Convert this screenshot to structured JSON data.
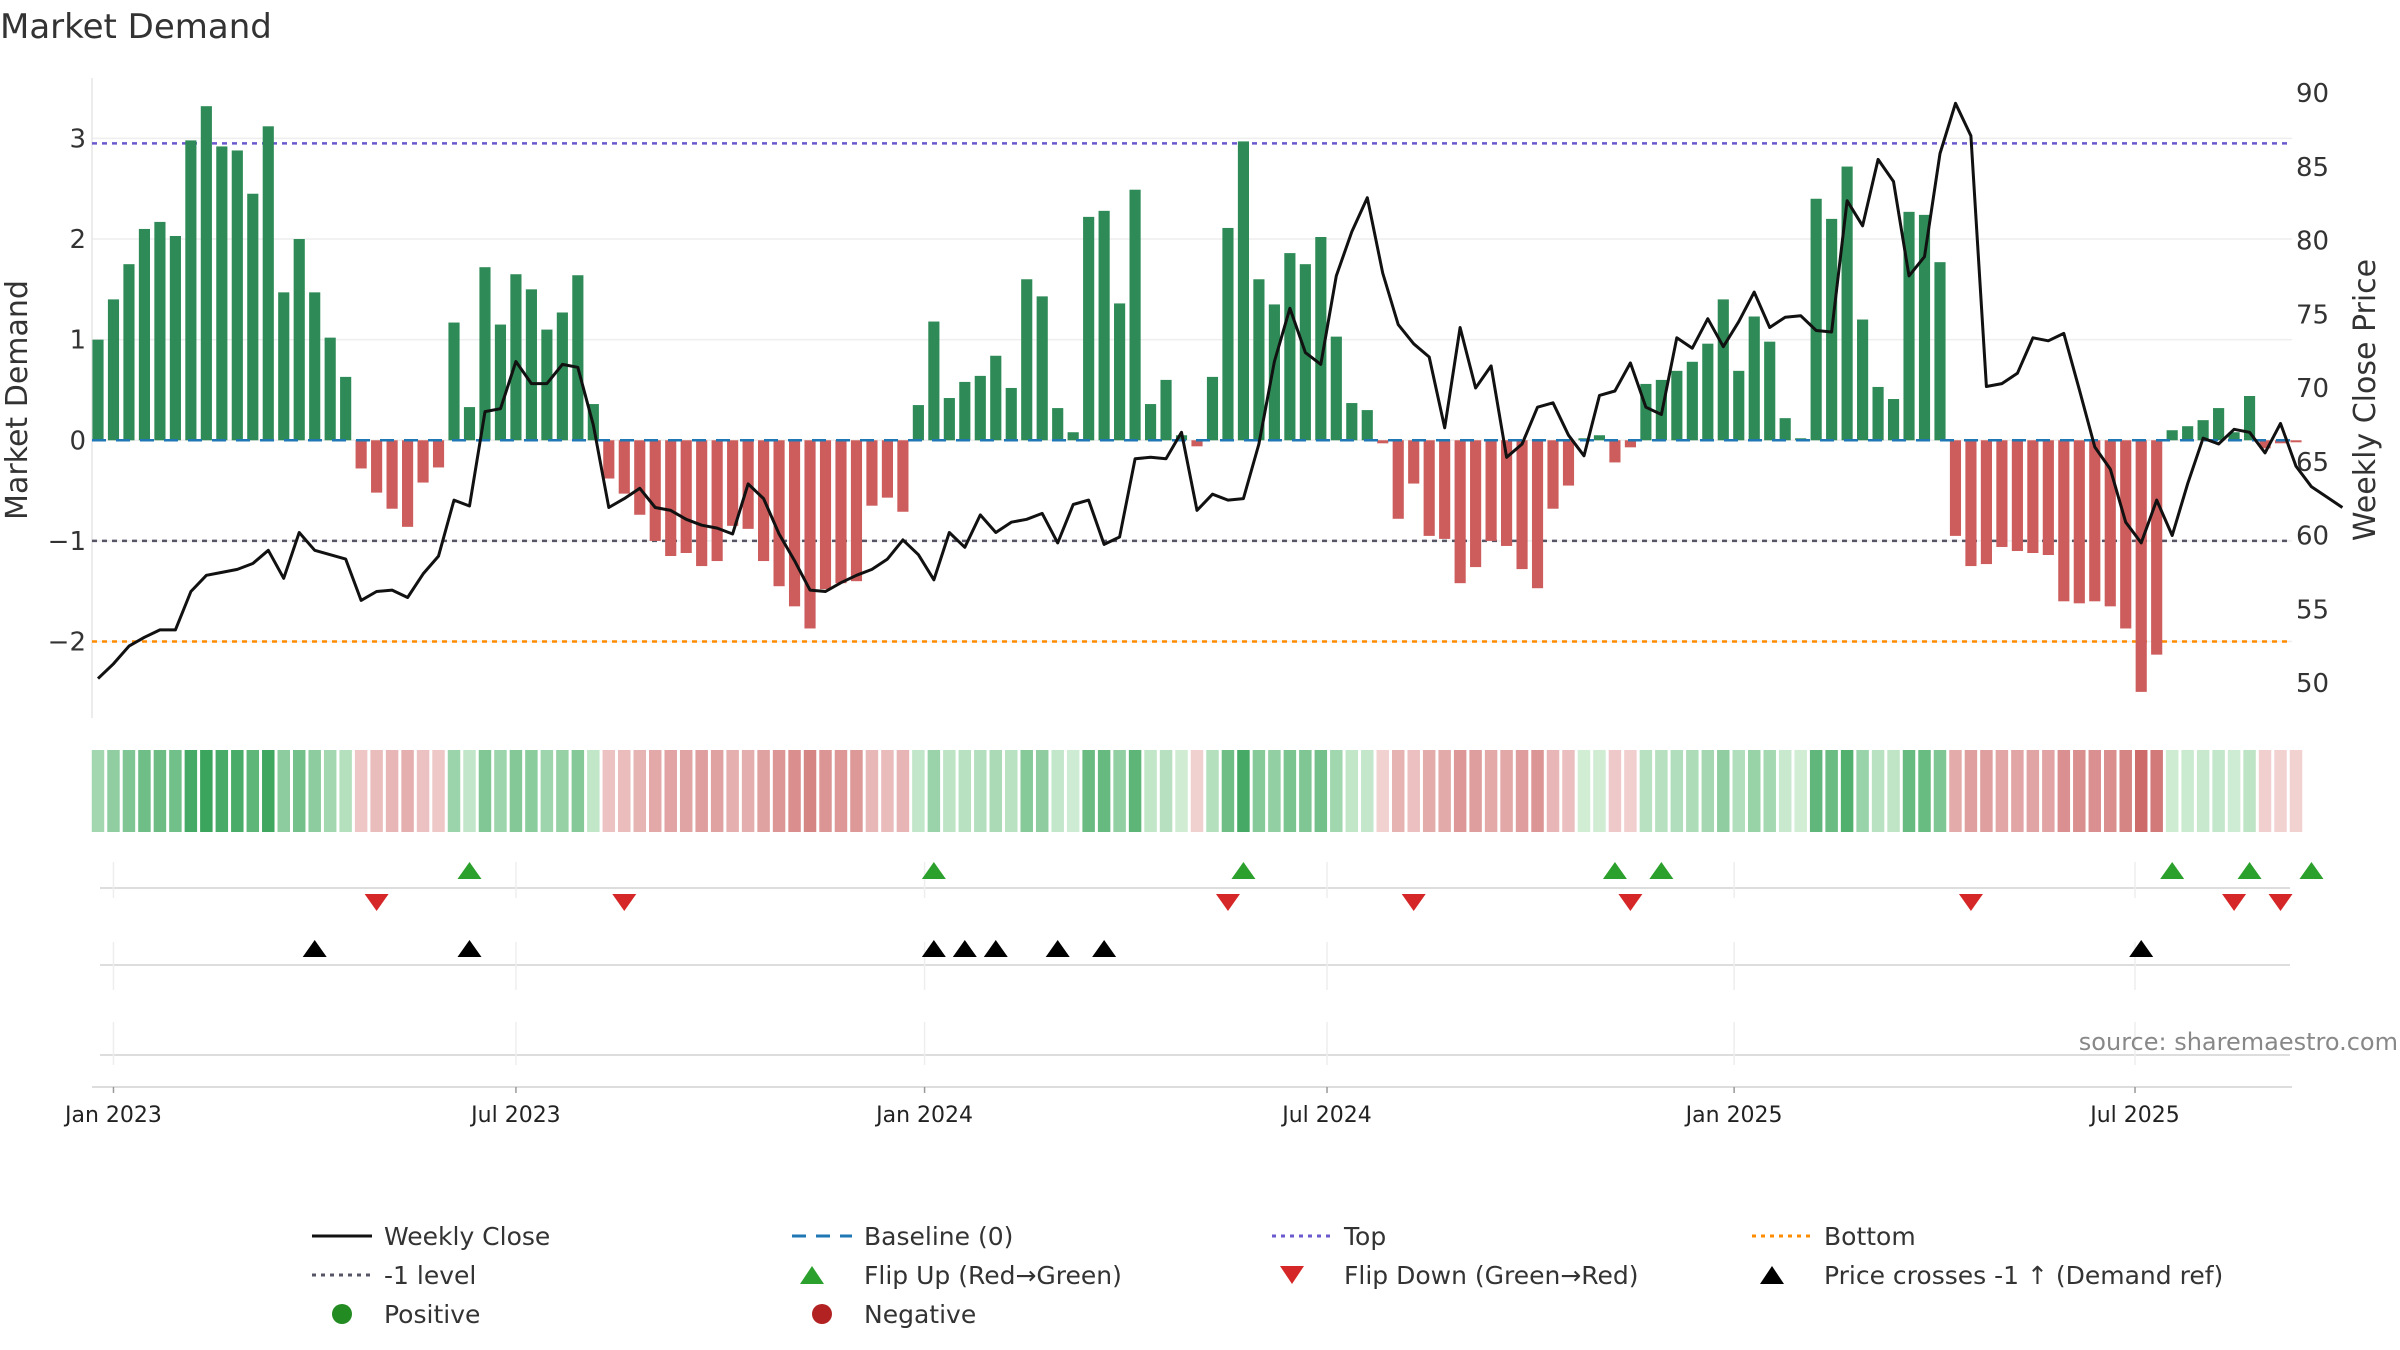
{
  "chart_data": {
    "type": "bar+line",
    "title": "Market Demand",
    "ylabel_left": "Market Demand",
    "ylabel_right": "Weekly Close Price",
    "ylim_left": [
      -2.7,
      3.6
    ],
    "ylim_right": [
      48.0,
      91.0
    ],
    "yticks_left": [
      3,
      2,
      1,
      0,
      -1,
      -2
    ],
    "ytick_labels_left": [
      "3",
      "2",
      "1",
      "0",
      "−1",
      "−2"
    ],
    "yticks_right": [
      90,
      85,
      80,
      75,
      70,
      65,
      60,
      55,
      50
    ],
    "ytick_labels_right": [
      "90",
      "85",
      "80",
      "75",
      "70",
      "65",
      "60",
      "55",
      "50"
    ],
    "x_start": "2022-12-26",
    "x_end": "2025-09-01",
    "xticks": [
      {
        "label": "Jan 2023",
        "week": 1
      },
      {
        "label": "Jul 2023",
        "week": 27
      },
      {
        "label": "Jan 2024",
        "week": 53.4
      },
      {
        "label": "Jul 2024",
        "week": 79.4
      },
      {
        "label": "Jan 2025",
        "week": 105.7
      },
      {
        "label": "Jul 2025",
        "week": 131.6
      }
    ],
    "reference_lines": {
      "top": 2.95,
      "minus_one_level": -1.0,
      "bottom": -2.0,
      "baseline": 0
    },
    "demand": [
      1.0,
      1.4,
      1.75,
      2.1,
      2.17,
      2.03,
      2.98,
      3.32,
      2.92,
      2.88,
      2.45,
      3.12,
      1.47,
      2.0,
      1.47,
      1.02,
      0.63,
      -0.28,
      -0.52,
      -0.68,
      -0.86,
      -0.42,
      -0.27,
      1.17,
      0.33,
      1.72,
      1.15,
      1.65,
      1.5,
      1.1,
      1.27,
      1.64,
      0.36,
      -0.38,
      -0.53,
      -0.74,
      -1.0,
      -1.15,
      -1.12,
      -1.25,
      -1.2,
      -0.85,
      -0.88,
      -1.2,
      -1.45,
      -1.65,
      -1.87,
      -1.48,
      -1.42,
      -1.4,
      -0.65,
      -0.57,
      -0.71,
      0.35,
      1.18,
      0.42,
      0.58,
      0.64,
      0.84,
      0.52,
      1.6,
      1.43,
      0.32,
      0.08,
      2.22,
      2.28,
      1.36,
      2.49,
      0.36,
      0.6,
      0.05,
      -0.06,
      0.63,
      2.11,
      2.97,
      1.6,
      1.35,
      1.86,
      1.75,
      2.02,
      1.03,
      0.37,
      0.3,
      -0.03,
      -0.78,
      -0.43,
      -0.95,
      -0.98,
      -1.42,
      -1.26,
      -1.0,
      -1.05,
      -1.28,
      -1.47,
      -0.68,
      -0.45,
      0.02,
      0.05,
      -0.22,
      -0.07,
      0.56,
      0.6,
      0.69,
      0.78,
      0.96,
      1.4,
      0.69,
      1.23,
      0.98,
      0.22,
      0.02,
      2.4,
      2.2,
      2.72,
      1.2,
      0.53,
      0.41,
      2.27,
      2.24,
      1.77,
      -0.95,
      -1.25,
      -1.23,
      -1.06,
      -1.1,
      -1.12,
      -1.14,
      -1.6,
      -1.62,
      -1.6,
      -1.65,
      -1.87,
      -2.5,
      -2.13,
      0.1,
      0.14,
      0.2,
      0.32,
      0.08,
      0.44,
      -0.08,
      -0.03,
      -0.02
    ],
    "price": [
      50.3,
      51.3,
      52.5,
      53.1,
      53.6,
      53.6,
      56.2,
      57.3,
      57.5,
      57.7,
      58.1,
      59.0,
      57.1,
      60.2,
      59.0,
      58.7,
      58.4,
      55.6,
      56.2,
      56.3,
      55.8,
      57.4,
      58.6,
      62.4,
      62.0,
      68.4,
      68.6,
      71.8,
      70.3,
      70.3,
      71.6,
      71.4,
      67.5,
      61.9,
      62.5,
      63.2,
      61.9,
      61.7,
      61.1,
      60.7,
      60.5,
      60.1,
      63.5,
      62.5,
      60.1,
      58.3,
      56.3,
      56.2,
      56.8,
      57.3,
      57.7,
      58.4,
      59.7,
      58.7,
      57.0,
      60.2,
      59.2,
      61.4,
      60.2,
      60.9,
      61.1,
      61.5,
      59.5,
      62.1,
      62.4,
      59.4,
      59.9,
      65.2,
      65.3,
      65.2,
      67.0,
      61.7,
      62.8,
      62.4,
      62.5,
      66.2,
      71.8,
      75.4,
      72.4,
      71.6,
      77.6,
      80.6,
      82.9,
      77.8,
      74.3,
      73.0,
      72.1,
      67.3,
      74.1,
      70.0,
      71.5,
      65.3,
      66.2,
      68.7,
      69.0,
      66.8,
      65.4,
      69.5,
      69.8,
      71.7,
      68.7,
      68.2,
      73.4,
      72.7,
      74.7,
      72.8,
      74.5,
      76.5,
      74.1,
      74.8,
      74.9,
      73.9,
      73.8,
      82.7,
      81.0,
      85.5,
      84.0,
      77.6,
      78.9,
      85.9,
      89.3,
      87.1,
      70.1,
      70.3,
      71.0,
      73.4,
      73.2,
      73.7,
      69.9,
      66.0,
      64.5,
      60.9,
      59.5,
      62.4,
      60.0,
      63.5,
      66.6,
      66.2,
      67.2,
      67.0,
      65.6,
      67.6,
      64.7,
      63.3,
      62.6,
      61.9
    ],
    "intensity_strip": {
      "description": "weekly demand intensity colour strip under main plot"
    },
    "flip_up_weeks": [
      24,
      54,
      74,
      98,
      101,
      134,
      139,
      143
    ],
    "flip_down_weeks": [
      18,
      34,
      73,
      85,
      99,
      121,
      138,
      141
    ],
    "price_cross_weeks": [
      14,
      24,
      54,
      56,
      58,
      62,
      65,
      132
    ],
    "source": "source: sharemaestro.com",
    "legend": {
      "weekly_close": "Weekly Close",
      "baseline": "Baseline (0)",
      "top": "Top",
      "bottom": "Bottom",
      "minus_one": "-1 level",
      "flip_up": "Flip Up (Red→Green)",
      "flip_down": "Flip Down (Green→Red)",
      "price_cross": "Price crosses -1 ↑ (Demand ref)",
      "positive": "Positive",
      "negative": "Negative"
    },
    "colors": {
      "positive_bar": "#2e8b57",
      "negative_bar": "#cd5c5c",
      "price_line": "#111111",
      "top_line": "#6a5acd",
      "bottom_line": "#ff8c00",
      "minus_one_line": "#555566",
      "baseline_line": "#1f77b4",
      "flip_up": "#2ca02c",
      "flip_down": "#d62728",
      "positive_marker": "#228b22",
      "negative_marker": "#b22222"
    }
  }
}
